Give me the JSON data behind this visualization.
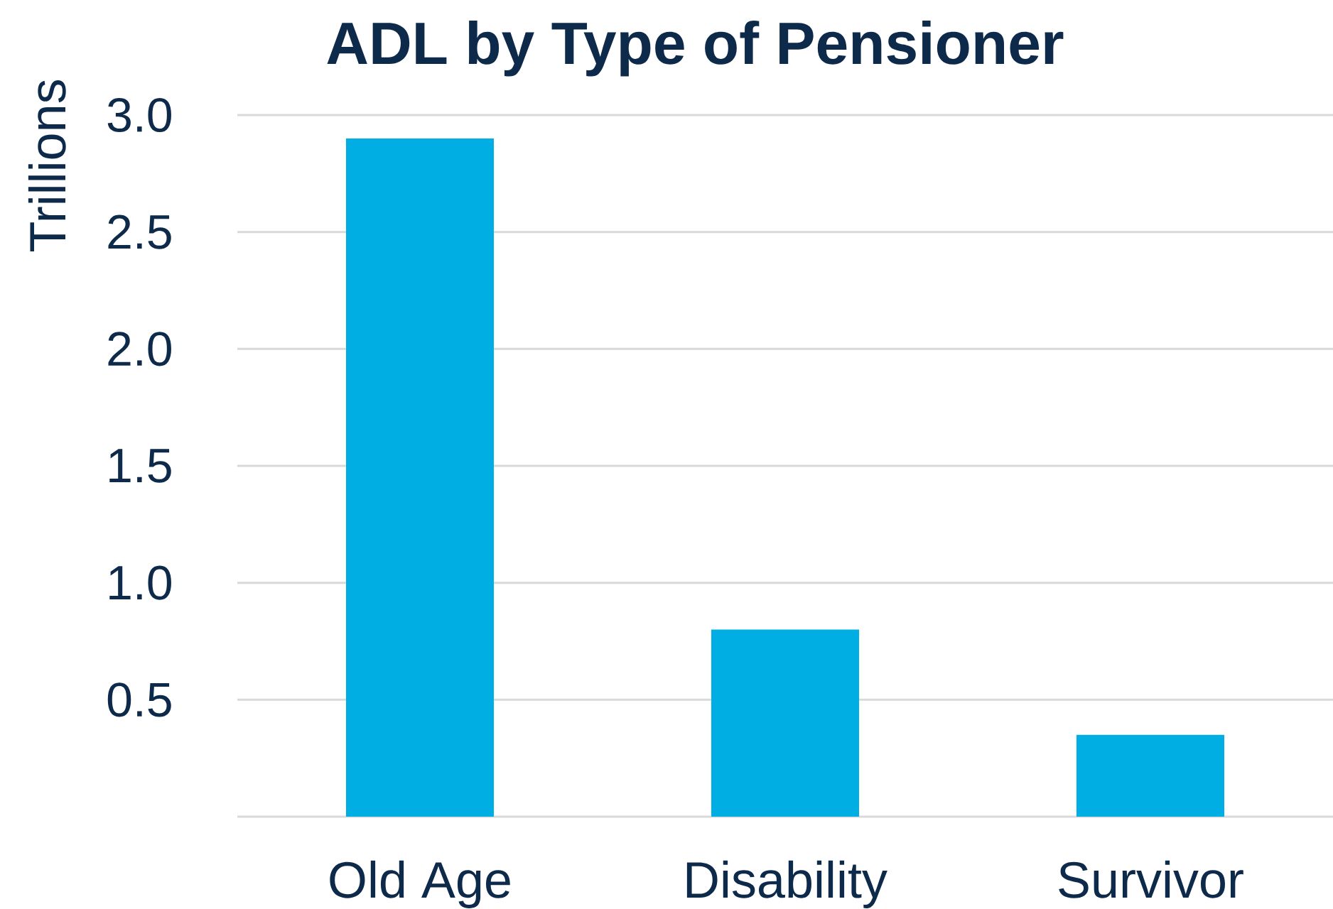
{
  "chart_data": {
    "type": "bar",
    "title": "ADL by Type of Pensioner",
    "ylabel": "Trillions",
    "categories": [
      "Old Age",
      "Disability",
      "Survivor"
    ],
    "values": [
      2.9,
      0.8,
      0.35
    ],
    "color": "#00aee3",
    "ylim": [
      0,
      3.0
    ],
    "yticks": [
      {
        "value": 0,
        "label": null
      },
      0.5,
      {
        "value": 1,
        "label": "1.0"
      },
      1.5,
      {
        "value": 2,
        "label": "2.0"
      },
      2.5,
      {
        "value": 3,
        "label": "3.0"
      }
    ],
    "grid": "y"
  }
}
